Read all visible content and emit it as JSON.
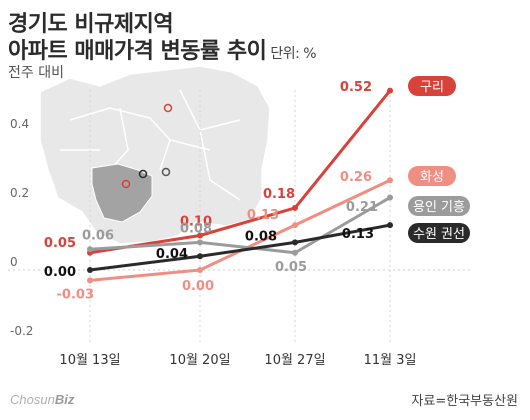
{
  "header": {
    "title_line1": "경기도 비규제지역",
    "title_line2": "아파트 매매가격 변동률 추이",
    "unit": "단위: %",
    "subtitle": "전주 대비"
  },
  "footer": {
    "logo_main": "Chosun",
    "logo_accent": "Biz",
    "source": "자료=한국부동산원"
  },
  "chart_data": {
    "type": "line",
    "categories": [
      "10월 13일",
      "10월 20일",
      "10월 27일",
      "11월 3일"
    ],
    "ylim": [
      -0.2,
      0.6
    ],
    "yticks": [
      "0.4",
      "0.2",
      "0",
      "-0.2"
    ],
    "ytick_values": [
      0.4,
      0.2,
      0,
      -0.2
    ],
    "grid": false,
    "legend": "end-labels",
    "series": [
      {
        "name": "구리",
        "color": "#d9413b",
        "values": [
          0.05,
          0.1,
          0.18,
          0.52
        ],
        "labels": [
          "0.05",
          "0.10",
          "0.18",
          "0.52"
        ]
      },
      {
        "name": "화성",
        "color": "#f08e84",
        "values": [
          -0.03,
          0.0,
          0.13,
          0.26
        ],
        "labels": [
          "-0.03",
          "0.00",
          "0.13",
          "0.26"
        ]
      },
      {
        "name": "용인 기흥",
        "color": "#9b9b9b",
        "values": [
          0.06,
          0.08,
          0.05,
          0.21
        ],
        "labels": [
          "0.06",
          "0.08",
          "0.05",
          "0.21"
        ]
      },
      {
        "name": "수원 권선",
        "color": "#2a2a2a",
        "values": [
          0.0,
          0.04,
          0.08,
          0.13
        ],
        "labels": [
          "0.00",
          "0.04",
          "0.08",
          "0.13"
        ]
      }
    ]
  }
}
